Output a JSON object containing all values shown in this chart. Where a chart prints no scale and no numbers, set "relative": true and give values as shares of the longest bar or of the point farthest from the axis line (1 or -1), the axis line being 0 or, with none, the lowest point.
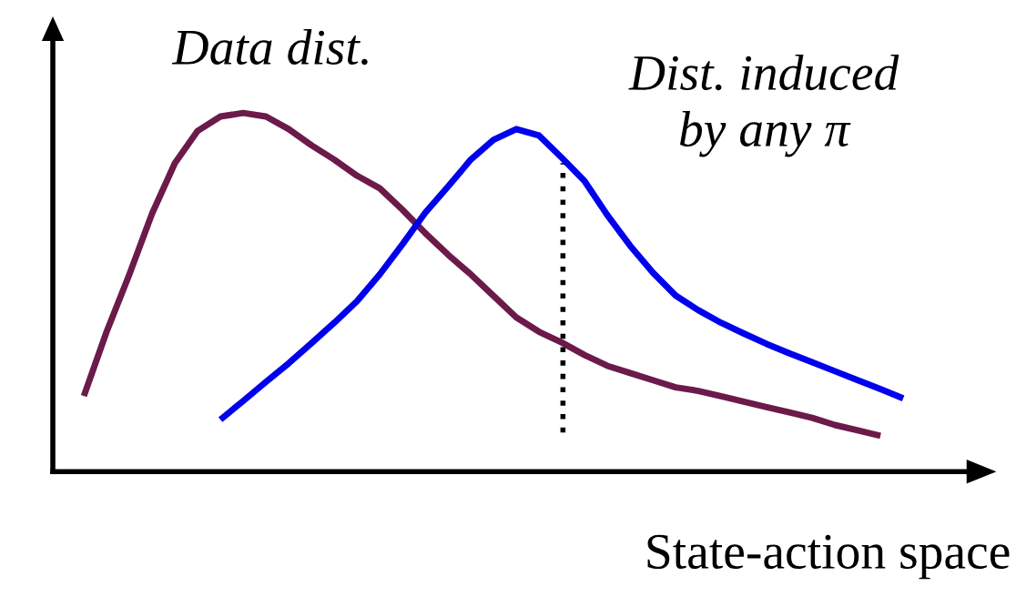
{
  "chart_data": {
    "type": "line",
    "relative": true,
    "xlabel": "State-action space",
    "marker": "none",
    "categories": [
      null,
      null,
      null,
      null,
      null,
      null,
      null,
      null,
      null,
      null,
      null,
      null,
      null,
      null,
      null,
      null,
      null,
      null,
      null,
      null,
      null,
      null,
      null,
      null,
      null,
      null,
      null,
      null,
      null,
      null,
      null,
      null,
      null,
      null,
      null,
      null,
      null
    ],
    "series": [
      {
        "name": "Data dist.",
        "color": "#6b1a4a",
        "values": [
          0.211,
          0.39,
          0.55,
          0.72,
          0.86,
          0.95,
          0.99,
          1,
          0.99,
          0.955,
          0.91,
          0.87,
          0.825,
          0.79,
          0.73,
          0.665,
          0.605,
          0.55,
          0.49,
          0.43,
          0.39,
          0.36,
          0.325,
          0.295,
          0.275,
          0.255,
          0.235,
          0.225,
          0.21,
          0.195,
          0.18,
          0.165,
          0.15,
          0.13,
          0.115,
          0.1,
          null
        ]
      },
      {
        "name": "Dist. induced\nby any π",
        "color": "#0000ee",
        "values": [
          null,
          null,
          null,
          null,
          null,
          null,
          0.145,
          0.197,
          0.25,
          0.302,
          0.358,
          0.415,
          0.475,
          0.55,
          0.634,
          0.722,
          0.795,
          0.87,
          0.925,
          0.955,
          0.937,
          0.875,
          0.81,
          0.715,
          0.63,
          0.555,
          0.491,
          0.45,
          0.415,
          0.385,
          0.356,
          0.33,
          0.305,
          0.28,
          0.255,
          0.23,
          0.204
        ]
      }
    ]
  }
}
